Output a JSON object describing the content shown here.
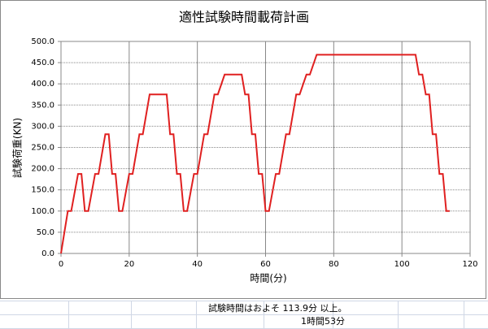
{
  "chart_data": {
    "type": "line",
    "title": "適性試験時間載荷計画",
    "x_label": "時間(分)",
    "y_label": "試験荷重(KN)",
    "x": [
      0,
      2,
      3,
      5,
      6,
      7,
      8,
      10,
      11,
      13,
      14,
      15,
      16,
      17,
      18,
      20,
      21,
      23,
      24,
      26,
      31,
      32,
      33,
      34,
      35,
      36,
      37,
      39,
      40,
      42,
      43,
      45,
      46,
      48,
      53,
      54,
      55,
      56,
      57,
      58,
      59,
      60,
      61,
      63,
      64,
      66,
      67,
      69,
      70,
      72,
      73,
      75,
      104,
      105,
      106,
      107,
      108,
      109,
      110,
      111,
      112,
      113,
      114
    ],
    "values": [
      0,
      100,
      100,
      187.5,
      187.5,
      100,
      100,
      187.5,
      187.5,
      281.25,
      281.25,
      187.5,
      187.5,
      100,
      100,
      187.5,
      187.5,
      281.25,
      281.25,
      375,
      375,
      281.25,
      281.25,
      187.5,
      187.5,
      100,
      100,
      187.5,
      187.5,
      281.25,
      281.25,
      375,
      375,
      421.875,
      421.875,
      375,
      375,
      281.25,
      281.25,
      187.5,
      187.5,
      100,
      100,
      187.5,
      187.5,
      281.25,
      281.25,
      375,
      375,
      421.875,
      421.875,
      468.75,
      468.75,
      421.875,
      421.875,
      375,
      375,
      281.25,
      281.25,
      187.5,
      187.5,
      100,
      100
    ],
    "color": "#e02020",
    "xlim": [
      0,
      120
    ],
    "xticks": [
      0,
      20,
      40,
      60,
      80,
      100,
      120
    ],
    "ylim": [
      0,
      500
    ],
    "yticks": [
      {
        "value": 0,
        "label": "0.0"
      },
      {
        "value": 50,
        "label": "50.0"
      },
      {
        "value": 100,
        "label": "100.0"
      },
      {
        "value": 150,
        "label": "150.0"
      },
      {
        "value": 200,
        "label": "200.0"
      },
      {
        "value": 250,
        "label": "250.0"
      },
      {
        "value": 300,
        "label": "300.0"
      },
      {
        "value": 350,
        "label": "350.0"
      },
      {
        "value": 400,
        "label": "400.0"
      },
      {
        "value": 450,
        "label": "450.0"
      },
      {
        "value": 500,
        "label": "500.0"
      }
    ],
    "grid": true,
    "annotations": [
      "試験時間はおよそ 113.9分 以上。",
      "1時間53分"
    ]
  }
}
